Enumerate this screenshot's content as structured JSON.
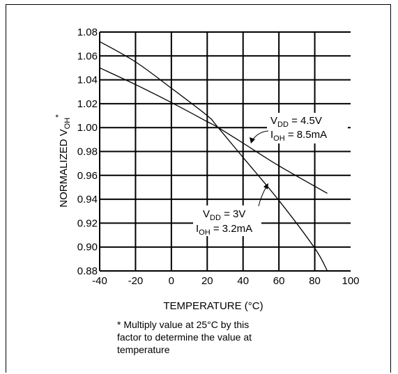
{
  "chart_data": {
    "type": "line",
    "title": "",
    "xlabel": "TEMPERATURE (°C)",
    "ylabel_main": "NORMALIZED V",
    "ylabel_sub": "OH",
    "ylabel_sup": "*",
    "xlim": [
      -40,
      100
    ],
    "ylim": [
      0.88,
      1.08
    ],
    "x_ticks": [
      -40,
      -20,
      0,
      20,
      40,
      60,
      80,
      100
    ],
    "x_tick_labels": [
      "-40",
      "-20",
      "0",
      "20",
      "40",
      "60",
      "80",
      "100"
    ],
    "y_ticks": [
      0.88,
      0.9,
      0.92,
      0.94,
      0.96,
      0.98,
      1.0,
      1.02,
      1.04,
      1.06,
      1.08
    ],
    "y_tick_labels": [
      "0.88",
      "0.90",
      "0.92",
      "0.94",
      "0.96",
      "0.98",
      "1.00",
      "1.02",
      "1.04",
      "1.06",
      "1.08"
    ],
    "grid": true,
    "series": [
      {
        "x": [
          -40,
          -20,
          0,
          20,
          25,
          40,
          60,
          87
        ],
        "y": [
          1.05,
          1.036,
          1.021,
          1.005,
          1.001,
          0.987,
          0.968,
          0.945
        ]
      },
      {
        "x": [
          -40,
          -20,
          0,
          20,
          25,
          40,
          60,
          80,
          87
        ],
        "y": [
          1.072,
          1.055,
          1.033,
          1.01,
          1.002,
          0.975,
          0.939,
          0.899,
          0.88
        ]
      }
    ],
    "annotations": [
      {
        "line1_main": "V",
        "line1_sub": "DD",
        "line1_rest": " = 4.5V",
        "line2_main": "I",
        "line2_sub": "OH",
        "line2_rest": " = 8.5mA"
      },
      {
        "line1_main": "V",
        "line1_sub": "DD",
        "line1_rest": " = 3V",
        "line2_main": "I",
        "line2_sub": "OH",
        "line2_rest": " = 3.2mA"
      }
    ],
    "footnote": [
      "* Multiply value at 25°C by this",
      "factor to determine the value at",
      "temperature"
    ]
  }
}
